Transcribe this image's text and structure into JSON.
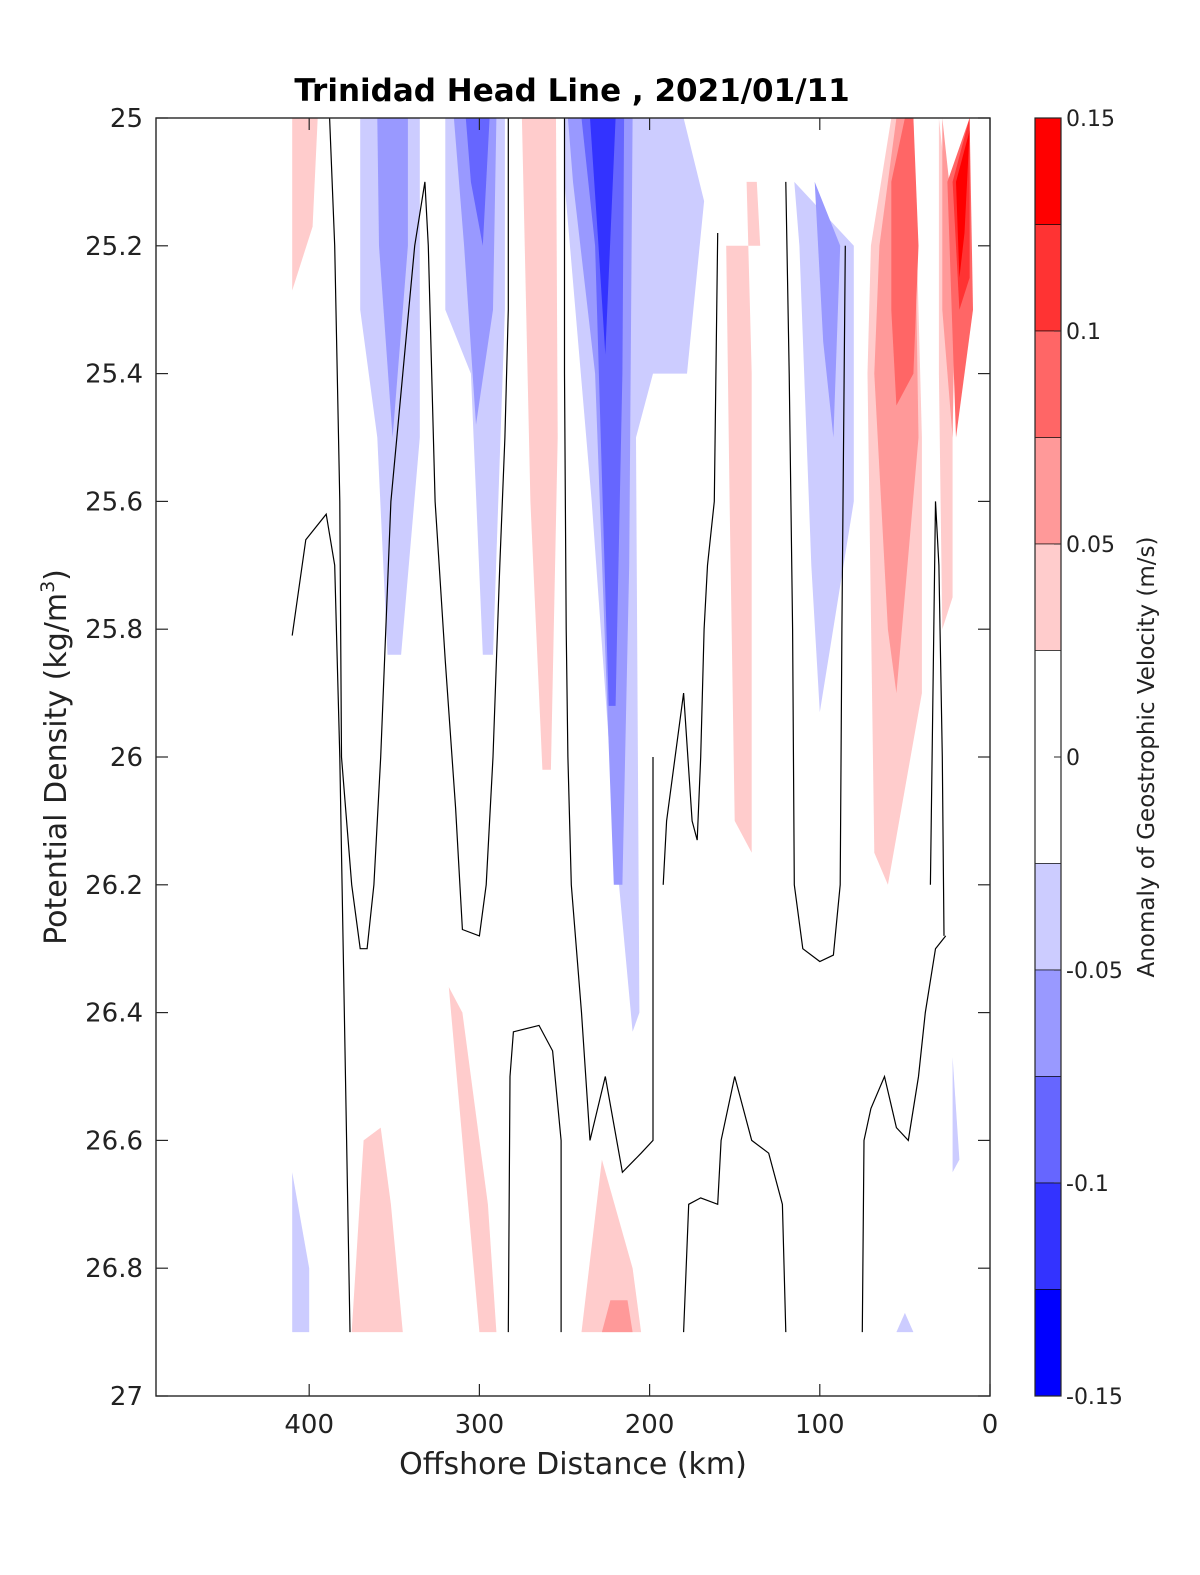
{
  "chart_data": {
    "type": "contour",
    "title": "Trinidad Head Line , 2021/01/11",
    "xlabel": "Offshore Distance (km)",
    "ylabel_main": "Potential Density (kg/m",
    "ylabel_sup": "3",
    "ylabel_close": ")",
    "xlim": [
      490,
      0
    ],
    "x_reversed": true,
    "ylim": [
      25,
      27
    ],
    "y_reversed": true,
    "xticks": [
      400,
      300,
      200,
      100,
      0
    ],
    "yticks": [
      "25",
      "25.2",
      "25.4",
      "25.6",
      "25.8",
      "26",
      "26.2",
      "26.4",
      "26.6",
      "26.8",
      "27"
    ],
    "colorbar": {
      "label": "Anomaly of Geostrophic Velocity (m/s)",
      "range": [
        -0.15,
        0.15
      ],
      "ticks": [
        "0.15",
        "0.1",
        "0.05",
        "0",
        "-0.05",
        "-0.1",
        "-0.15"
      ],
      "levels": [
        {
          "from": 0.125,
          "to": 0.15,
          "color": "#ff0000"
        },
        {
          "from": 0.1,
          "to": 0.125,
          "color": "#ff3333"
        },
        {
          "from": 0.075,
          "to": 0.1,
          "color": "#ff6666"
        },
        {
          "from": 0.05,
          "to": 0.075,
          "color": "#ff9999"
        },
        {
          "from": 0.025,
          "to": 0.05,
          "color": "#ffcccc"
        },
        {
          "from": -0.025,
          "to": 0.025,
          "color": "#ffffff"
        },
        {
          "from": -0.05,
          "to": -0.025,
          "color": "#ccccff"
        },
        {
          "from": -0.075,
          "to": -0.05,
          "color": "#9999ff"
        },
        {
          "from": -0.1,
          "to": -0.075,
          "color": "#6666ff"
        },
        {
          "from": -0.125,
          "to": -0.1,
          "color": "#3333ff"
        },
        {
          "from": -0.15,
          "to": -0.125,
          "color": "#0000ff"
        }
      ]
    },
    "filled_regions": [
      {
        "level": 0.025,
        "color": "#ffcccc",
        "points": [
          [
            410,
            25
          ],
          [
            395,
            25
          ],
          [
            398,
            25.17
          ],
          [
            410,
            25.27
          ]
        ]
      },
      {
        "level": -0.025,
        "color": "#ccccff",
        "points": [
          [
            370,
            25
          ],
          [
            335,
            25
          ],
          [
            335,
            25.5
          ],
          [
            346,
            25.84
          ],
          [
            354,
            25.84
          ],
          [
            360,
            25.5
          ],
          [
            370,
            25.3
          ]
        ]
      },
      {
        "level": -0.05,
        "color": "#9999ff",
        "points": [
          [
            360,
            25
          ],
          [
            342,
            25
          ],
          [
            342,
            25.2
          ],
          [
            351,
            25.5
          ],
          [
            359,
            25.2
          ]
        ]
      },
      {
        "level": -0.025,
        "color": "#ccccff",
        "points": [
          [
            320,
            25
          ],
          [
            285,
            25
          ],
          [
            285,
            25.3
          ],
          [
            292,
            25.84
          ],
          [
            298,
            25.84
          ],
          [
            305,
            25.4
          ],
          [
            320,
            25.3
          ]
        ]
      },
      {
        "level": -0.05,
        "color": "#9999ff",
        "points": [
          [
            315,
            25
          ],
          [
            290,
            25
          ],
          [
            292,
            25.3
          ],
          [
            302,
            25.48
          ],
          [
            309,
            25.2
          ]
        ]
      },
      {
        "level": -0.075,
        "color": "#6666ff",
        "points": [
          [
            308,
            25
          ],
          [
            294,
            25
          ],
          [
            298,
            25.2
          ],
          [
            305,
            25.1
          ]
        ]
      },
      {
        "level": 0.025,
        "color": "#ffcccc",
        "points": [
          [
            275,
            25
          ],
          [
            255,
            25
          ],
          [
            254,
            25.5
          ],
          [
            258,
            26.02
          ],
          [
            263,
            26.02
          ],
          [
            270,
            25.6
          ]
        ]
      },
      {
        "level": -0.025,
        "color": "#ccccff",
        "points": [
          [
            250,
            25
          ],
          [
            180,
            25
          ],
          [
            168,
            25.13
          ],
          [
            178,
            25.4
          ],
          [
            198,
            25.4
          ],
          [
            208,
            25.5
          ],
          [
            206,
            26.4
          ],
          [
            210,
            26.43
          ],
          [
            218,
            26.2
          ],
          [
            234,
            25.6
          ],
          [
            250,
            25.1
          ]
        ]
      },
      {
        "level": -0.05,
        "color": "#9999ff",
        "points": [
          [
            248,
            25
          ],
          [
            210,
            25
          ],
          [
            212,
            25.7
          ],
          [
            216,
            26.2
          ],
          [
            221,
            26.2
          ],
          [
            232,
            25.4
          ],
          [
            245,
            25.1
          ]
        ]
      },
      {
        "level": -0.075,
        "color": "#6666ff",
        "points": [
          [
            240,
            25
          ],
          [
            215,
            25
          ],
          [
            216,
            25.4
          ],
          [
            220,
            25.92
          ],
          [
            224,
            25.92
          ],
          [
            232,
            25.2
          ]
        ]
      },
      {
        "level": -0.1,
        "color": "#3333ff",
        "points": [
          [
            235,
            25
          ],
          [
            220,
            25
          ],
          [
            226,
            25.37
          ],
          [
            230,
            25.2
          ]
        ]
      },
      {
        "level": 0.025,
        "color": "#ffcccc",
        "points": [
          [
            155,
            25.2
          ],
          [
            135,
            25.2
          ],
          [
            137,
            25.1
          ],
          [
            143,
            25.1
          ],
          [
            140,
            25.4
          ],
          [
            140,
            26.15
          ],
          [
            150,
            26.1
          ],
          [
            153,
            25.6
          ]
        ]
      },
      {
        "level": -0.025,
        "color": "#ccccff",
        "points": [
          [
            115,
            25.1
          ],
          [
            80,
            25.2
          ],
          [
            80,
            25.6
          ],
          [
            100,
            25.93
          ],
          [
            105,
            25.7
          ],
          [
            112,
            25.2
          ]
        ]
      },
      {
        "level": -0.05,
        "color": "#9999ff",
        "points": [
          [
            103,
            25.1
          ],
          [
            88,
            25.2
          ],
          [
            92,
            25.5
          ],
          [
            98,
            25.35
          ]
        ]
      },
      {
        "level": 0.025,
        "color": "#ffcccc",
        "points": [
          [
            70,
            25.2
          ],
          [
            58,
            25
          ],
          [
            45,
            25
          ],
          [
            40,
            25.5
          ],
          [
            40,
            25.9
          ],
          [
            60,
            26.2
          ],
          [
            68,
            26.15
          ],
          [
            72,
            25.4
          ]
        ]
      },
      {
        "level": 0.05,
        "color": "#ff9999",
        "points": [
          [
            65,
            25.2
          ],
          [
            55,
            25
          ],
          [
            45,
            25
          ],
          [
            42,
            25.5
          ],
          [
            55,
            25.9
          ],
          [
            60,
            25.8
          ],
          [
            68,
            25.4
          ]
        ]
      },
      {
        "level": 0.075,
        "color": "#ff6666",
        "points": [
          [
            58,
            25.1
          ],
          [
            50,
            25
          ],
          [
            45,
            25
          ],
          [
            42,
            25.2
          ],
          [
            45,
            25.4
          ],
          [
            55,
            25.45
          ],
          [
            58,
            25.3
          ]
        ]
      },
      {
        "level": 0.025,
        "color": "#ffcccc",
        "points": [
          [
            30,
            25
          ],
          [
            22,
            25.2
          ],
          [
            22,
            25.75
          ],
          [
            28,
            25.8
          ],
          [
            30,
            25.4
          ]
        ]
      },
      {
        "level": 0.05,
        "color": "#ff9999",
        "points": [
          [
            28,
            25
          ],
          [
            20,
            25.2
          ],
          [
            22,
            25.5
          ],
          [
            28,
            25.3
          ]
        ]
      },
      {
        "level": 0.075,
        "color": "#ff6666",
        "points": [
          [
            25,
            25.1
          ],
          [
            12,
            25
          ],
          [
            10,
            25.3
          ],
          [
            15,
            25.4
          ],
          [
            20,
            25.5
          ]
        ]
      },
      {
        "level": 0.1,
        "color": "#ff3333",
        "points": [
          [
            22,
            25.1
          ],
          [
            12,
            25
          ],
          [
            12,
            25.25
          ],
          [
            18,
            25.3
          ]
        ]
      },
      {
        "level": 0.125,
        "color": "#ff0000",
        "points": [
          [
            20,
            25.1
          ],
          [
            12,
            25.02
          ],
          [
            15,
            25.18
          ],
          [
            18,
            25.25
          ]
        ]
      },
      {
        "level": 0.025,
        "color": "#ffcccc",
        "points": [
          [
            318,
            26.36
          ],
          [
            300,
            26.9
          ],
          [
            290,
            26.9
          ],
          [
            295,
            26.7
          ],
          [
            310,
            26.4
          ]
        ]
      },
      {
        "level": 0.025,
        "color": "#ffcccc",
        "points": [
          [
            368,
            26.6
          ],
          [
            375,
            26.9
          ],
          [
            345,
            26.9
          ],
          [
            352,
            26.7
          ],
          [
            358,
            26.58
          ]
        ]
      },
      {
        "level": 0.025,
        "color": "#ffcccc",
        "points": [
          [
            240,
            26.9
          ],
          [
            228,
            26.63
          ],
          [
            210,
            26.8
          ],
          [
            205,
            26.9
          ]
        ]
      },
      {
        "level": 0.05,
        "color": "#ff9999",
        "points": [
          [
            228,
            26.9
          ],
          [
            223,
            26.85
          ],
          [
            213,
            26.85
          ],
          [
            210,
            26.9
          ]
        ]
      },
      {
        "level": -0.025,
        "color": "#ccccff",
        "points": [
          [
            410,
            26.65
          ],
          [
            400,
            26.8
          ],
          [
            400,
            26.9
          ],
          [
            410,
            26.9
          ]
        ]
      },
      {
        "level": -0.025,
        "color": "#ccccff",
        "points": [
          [
            50,
            26.87
          ],
          [
            45,
            26.9
          ],
          [
            55,
            26.9
          ]
        ]
      },
      {
        "level": -0.025,
        "color": "#ccccff",
        "points": [
          [
            22,
            26.47
          ],
          [
            18,
            26.63
          ],
          [
            22,
            26.65
          ]
        ]
      }
    ],
    "contour_lines": [
      [
        [
          388,
          25
        ],
        [
          385,
          25.2
        ],
        [
          382,
          25.6
        ],
        [
          381,
          26
        ],
        [
          378,
          26.1
        ],
        [
          375,
          26.2
        ],
        [
          370,
          26.3
        ],
        [
          366,
          26.3
        ],
        [
          362,
          26.2
        ],
        [
          358,
          26
        ],
        [
          352,
          25.6
        ],
        [
          345,
          25.4
        ],
        [
          338,
          25.2
        ],
        [
          332,
          25.1
        ],
        [
          330,
          25.2
        ],
        [
          326,
          25.6
        ],
        [
          320,
          25.85
        ],
        [
          314,
          26.08
        ],
        [
          310,
          26.27
        ],
        [
          300,
          26.28
        ],
        [
          296,
          26.2
        ],
        [
          292,
          26
        ],
        [
          288,
          25.7
        ],
        [
          285,
          25.5
        ],
        [
          283,
          25.3
        ],
        [
          283,
          25
        ]
      ],
      [
        [
          250,
          25
        ],
        [
          250,
          25.4
        ],
        [
          249,
          25.8
        ],
        [
          248,
          26
        ],
        [
          246,
          26.2
        ],
        [
          240,
          26.4
        ],
        [
          235,
          26.6
        ],
        [
          226,
          26.5
        ],
        [
          216,
          26.65
        ],
        [
          205,
          26.62
        ],
        [
          198,
          26.6
        ],
        [
          198,
          26.4
        ],
        [
          198,
          26
        ]
      ],
      [
        [
          410,
          25.81
        ],
        [
          402,
          25.66
        ],
        [
          390,
          25.62
        ],
        [
          385,
          25.7
        ],
        [
          382,
          26
        ],
        [
          380,
          26.3
        ],
        [
          378,
          26.6
        ],
        [
          376,
          26.9
        ]
      ],
      [
        [
          283,
          26.9
        ],
        [
          282,
          26.5
        ],
        [
          280,
          26.43
        ],
        [
          265,
          26.42
        ],
        [
          257,
          26.46
        ],
        [
          252,
          26.6
        ],
        [
          252,
          26.9
        ]
      ],
      [
        [
          180,
          26.9
        ],
        [
          177,
          26.7
        ],
        [
          170,
          26.69
        ],
        [
          160,
          26.7
        ],
        [
          158,
          26.6
        ],
        [
          150,
          26.5
        ],
        [
          140,
          26.6
        ],
        [
          130,
          26.62
        ],
        [
          122,
          26.7
        ],
        [
          120,
          26.9
        ]
      ],
      [
        [
          160,
          25.18
        ],
        [
          162,
          25.6
        ],
        [
          166,
          25.7
        ],
        [
          168,
          25.8
        ],
        [
          170,
          26
        ],
        [
          172,
          26.13
        ],
        [
          175,
          26.1
        ],
        [
          180,
          25.9
        ],
        [
          190,
          26.1
        ],
        [
          192,
          26.2
        ]
      ],
      [
        [
          120,
          25.1
        ],
        [
          118,
          25.4
        ],
        [
          116,
          25.8
        ],
        [
          115,
          26.2
        ],
        [
          110,
          26.3
        ],
        [
          100,
          26.32
        ],
        [
          92,
          26.31
        ],
        [
          88,
          26.2
        ],
        [
          87,
          25.8
        ],
        [
          85,
          25.2
        ]
      ],
      [
        [
          75,
          26.9
        ],
        [
          74,
          26.6
        ],
        [
          70,
          26.55
        ],
        [
          62,
          26.5
        ],
        [
          55,
          26.58
        ],
        [
          48,
          26.6
        ],
        [
          42,
          26.5
        ],
        [
          38,
          26.4
        ],
        [
          32,
          26.3
        ],
        [
          26,
          26.28
        ]
      ],
      [
        [
          35,
          26.2
        ],
        [
          33,
          25.8
        ],
        [
          32,
          25.6
        ],
        [
          30,
          25.7
        ],
        [
          28,
          26
        ],
        [
          27,
          26.28
        ]
      ]
    ]
  }
}
